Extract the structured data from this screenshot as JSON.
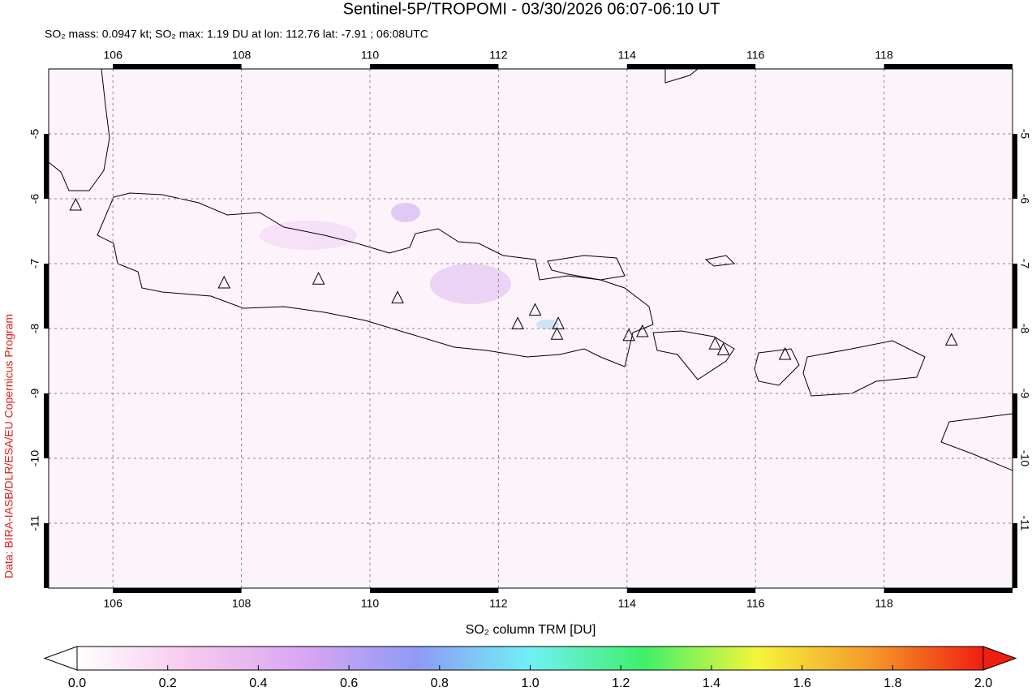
{
  "chart_data": {
    "type": "map",
    "title": "Sentinel-5P/TROPOMI - 03/30/2026 06:07-06:10 UT",
    "subtitle": "SO₂ mass: 0.0947 kt; SO₂ max: 1.19 DU at lon: 112.76 lat: -7.91 ; 06:08UTC",
    "credit": "Data: BIRA-IASB/DLR/ESA/EU Copernicus Program",
    "xlim": [
      105,
      120
    ],
    "ylim": [
      -12,
      -4
    ],
    "xticks": [
      106,
      108,
      110,
      112,
      114,
      116,
      118
    ],
    "yticks": [
      -5,
      -6,
      -7,
      -8,
      -9,
      -10,
      -11
    ],
    "grid": true,
    "volcanoes": {
      "lon": [
        105.42,
        107.73,
        109.2,
        110.43,
        112.3,
        112.57,
        112.93,
        112.91,
        114.03,
        114.24,
        115.37,
        115.5,
        116.46,
        119.05
      ],
      "lat": [
        -6.1,
        -7.3,
        -7.24,
        -7.53,
        -7.93,
        -7.72,
        -7.93,
        -8.09,
        -8.11,
        -8.05,
        -8.24,
        -8.33,
        -8.4,
        -8.18
      ]
    },
    "colorbar": {
      "label": "SO₂ column TRM [DU]",
      "clim": [
        0,
        2
      ],
      "ticks": [
        {
          "value": 0,
          "label": "0.0"
        },
        0.2,
        0.4,
        0.6,
        0.8,
        {
          "value": 1,
          "label": "1.0"
        },
        1.2,
        1.4,
        1.6,
        1.8,
        {
          "value": 2,
          "label": "2.0"
        }
      ],
      "colors": [
        "#ffffff",
        "#f7c8ee",
        "#d9a6f2",
        "#8f9af5",
        "#70f0f5",
        "#3ef06a",
        "#f5f53a",
        "#f59a2a",
        "#f01e10"
      ]
    }
  }
}
